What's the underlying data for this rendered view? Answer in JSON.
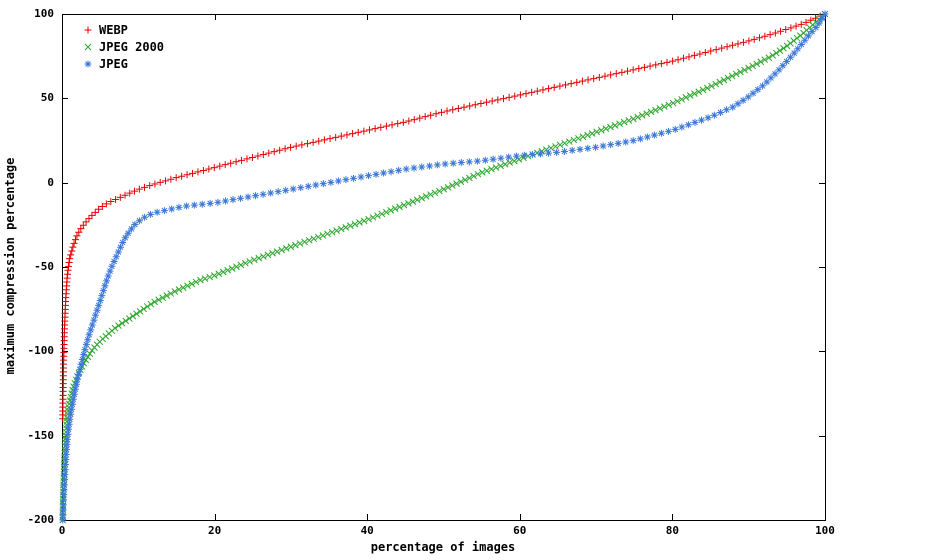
{
  "chart_data": {
    "type": "scatter",
    "title": "",
    "xlabel": "percentage of images",
    "ylabel": "maximum compression percentage",
    "xlim": [
      0,
      100
    ],
    "ylim": [
      -200,
      100
    ],
    "x_ticks": [
      0,
      20,
      40,
      60,
      80,
      100
    ],
    "y_ticks": [
      100,
      50,
      0,
      -50,
      -100,
      -150,
      -200
    ],
    "grid": false,
    "legend_position": "top-left",
    "background_color": "#ffffff",
    "border_color": "#000000",
    "series": [
      {
        "name": "WEBP",
        "color": "#e60000",
        "marker": "plus",
        "marker_count": 190,
        "points": [
          [
            0.1,
            -140
          ],
          [
            0.15,
            -122
          ],
          [
            0.2,
            -108
          ],
          [
            0.3,
            -90
          ],
          [
            0.4,
            -78
          ],
          [
            0.5,
            -68
          ],
          [
            0.7,
            -55
          ],
          [
            1,
            -45
          ],
          [
            1.5,
            -37
          ],
          [
            2,
            -31
          ],
          [
            2.5,
            -27
          ],
          [
            3,
            -24
          ],
          [
            4,
            -19
          ],
          [
            5,
            -15
          ],
          [
            6,
            -12
          ],
          [
            7,
            -10
          ],
          [
            8,
            -8
          ],
          [
            10,
            -4
          ],
          [
            12,
            -1
          ],
          [
            15,
            3
          ],
          [
            20,
            9
          ],
          [
            25,
            15
          ],
          [
            30,
            21
          ],
          [
            35,
            26
          ],
          [
            40,
            31
          ],
          [
            45,
            36
          ],
          [
            50,
            42
          ],
          [
            55,
            47
          ],
          [
            60,
            52
          ],
          [
            65,
            57
          ],
          [
            70,
            62
          ],
          [
            75,
            67
          ],
          [
            80,
            72
          ],
          [
            85,
            78
          ],
          [
            90,
            84
          ],
          [
            93,
            88
          ],
          [
            95,
            91
          ],
          [
            97,
            94
          ],
          [
            98,
            96
          ],
          [
            99,
            98
          ],
          [
            100,
            100
          ]
        ]
      },
      {
        "name": "JPEG 2000",
        "color": "#2ca62c",
        "marker": "cross",
        "marker_count": 225,
        "points": [
          [
            0.1,
            -200
          ],
          [
            0.15,
            -188
          ],
          [
            0.2,
            -178
          ],
          [
            0.3,
            -165
          ],
          [
            0.4,
            -156
          ],
          [
            0.5,
            -149
          ],
          [
            0.7,
            -139
          ],
          [
            1,
            -130
          ],
          [
            1.5,
            -121
          ],
          [
            2,
            -115
          ],
          [
            2.5,
            -110
          ],
          [
            3,
            -106
          ],
          [
            4,
            -99
          ],
          [
            5,
            -94
          ],
          [
            6,
            -90
          ],
          [
            7,
            -86
          ],
          [
            8,
            -83
          ],
          [
            10,
            -77
          ],
          [
            12,
            -71
          ],
          [
            15,
            -64
          ],
          [
            18,
            -58
          ],
          [
            20,
            -55
          ],
          [
            25,
            -46
          ],
          [
            30,
            -38
          ],
          [
            35,
            -30
          ],
          [
            40,
            -22
          ],
          [
            45,
            -13
          ],
          [
            50,
            -4
          ],
          [
            52,
            0
          ],
          [
            55,
            6
          ],
          [
            60,
            14
          ],
          [
            65,
            22
          ],
          [
            70,
            30
          ],
          [
            75,
            38
          ],
          [
            80,
            47
          ],
          [
            85,
            57
          ],
          [
            90,
            68
          ],
          [
            93,
            75
          ],
          [
            95,
            81
          ],
          [
            97,
            88
          ],
          [
            98,
            92
          ],
          [
            99,
            96
          ],
          [
            100,
            100
          ]
        ]
      },
      {
        "name": "JPEG",
        "color": "#3c78d8",
        "marker": "asterisk",
        "marker_count": 165,
        "points": [
          [
            0.1,
            -200
          ],
          [
            0.2,
            -188
          ],
          [
            0.3,
            -179
          ],
          [
            0.4,
            -171
          ],
          [
            0.5,
            -164
          ],
          [
            0.7,
            -152
          ],
          [
            1,
            -141
          ],
          [
            1.5,
            -128
          ],
          [
            2,
            -117
          ],
          [
            2.5,
            -108
          ],
          [
            3,
            -99
          ],
          [
            3.5,
            -91
          ],
          [
            4,
            -84
          ],
          [
            4.5,
            -77
          ],
          [
            5,
            -70
          ],
          [
            5.5,
            -63
          ],
          [
            6,
            -56
          ],
          [
            6.5,
            -50
          ],
          [
            7,
            -45
          ],
          [
            7.5,
            -40
          ],
          [
            8,
            -35
          ],
          [
            8.5,
            -31
          ],
          [
            9,
            -28
          ],
          [
            9.5,
            -25
          ],
          [
            10,
            -23
          ],
          [
            11,
            -20
          ],
          [
            12,
            -18
          ],
          [
            14,
            -16
          ],
          [
            16,
            -14
          ],
          [
            18,
            -13
          ],
          [
            20,
            -12
          ],
          [
            25,
            -8
          ],
          [
            30,
            -4
          ],
          [
            35,
            0
          ],
          [
            40,
            4
          ],
          [
            45,
            8
          ],
          [
            50,
            11
          ],
          [
            55,
            13
          ],
          [
            60,
            16
          ],
          [
            65,
            18
          ],
          [
            70,
            21
          ],
          [
            75,
            25
          ],
          [
            80,
            31
          ],
          [
            85,
            39
          ],
          [
            88,
            45
          ],
          [
            90,
            51
          ],
          [
            92,
            58
          ],
          [
            94,
            67
          ],
          [
            96,
            77
          ],
          [
            98,
            88
          ],
          [
            99,
            93
          ],
          [
            100,
            100
          ]
        ]
      }
    ]
  }
}
